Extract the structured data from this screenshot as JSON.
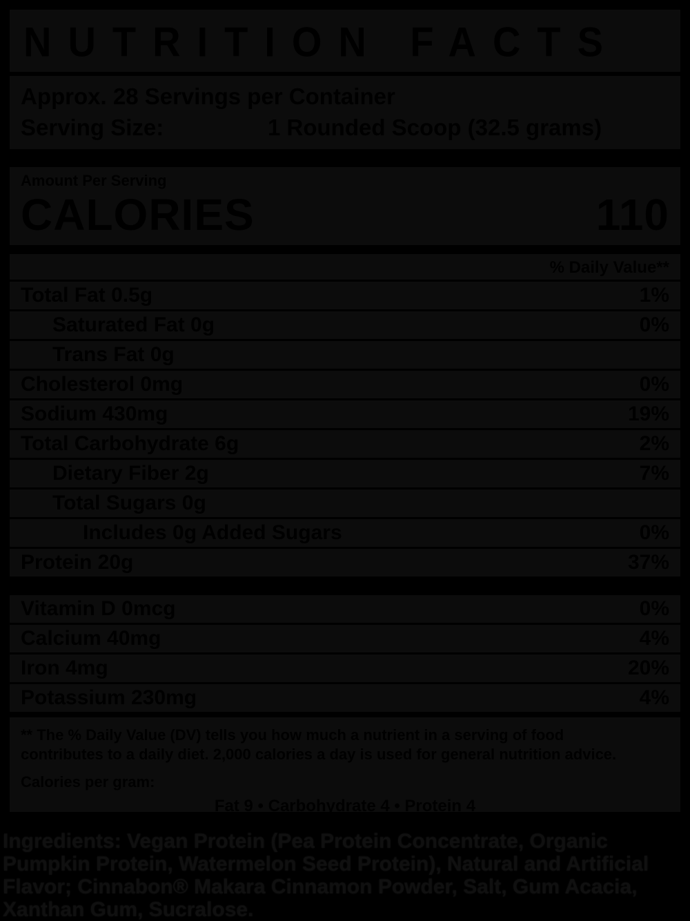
{
  "colors": {
    "page_background": "#000000",
    "label_background": "#0c0c0c",
    "ink": "#000000",
    "ingredients_ink": "#101010"
  },
  "label": {
    "title": "NUTRITION FACTS",
    "servings_per_container": "Approx. 28 Servings per Container",
    "serving_size_label": "Serving Size:",
    "serving_size_value": "1 Rounded Scoop (32.5 grams)",
    "amount_per_serving": "Amount Per Serving",
    "calories_label": "CALORIES",
    "calories_value": "110",
    "daily_value_header": "% Daily Value**",
    "rows": [
      {
        "name": "Total Fat 0.5g",
        "dv": "1%",
        "indent": 0
      },
      {
        "name": "Saturated Fat 0g",
        "dv": "0%",
        "indent": 1
      },
      {
        "name": "Trans Fat 0g",
        "dv": "",
        "indent": 1
      },
      {
        "name": "Cholesterol 0mg",
        "dv": "0%",
        "indent": 0
      },
      {
        "name": "Sodium 430mg",
        "dv": "19%",
        "indent": 0
      },
      {
        "name": "Total Carbohydrate 6g",
        "dv": "2%",
        "indent": 0
      },
      {
        "name": "Dietary Fiber 2g",
        "dv": "7%",
        "indent": 1
      },
      {
        "name": "Total Sugars 0g",
        "dv": "",
        "indent": 1
      },
      {
        "name": "Includes 0g Added Sugars",
        "dv": "0%",
        "indent": 2
      },
      {
        "name": "Protein 20g",
        "dv": "37%",
        "indent": 0
      }
    ],
    "vitamin_rows": [
      {
        "name": "Vitamin D 0mcg",
        "dv": "0%"
      },
      {
        "name": "Calcium 40mg",
        "dv": "4%"
      },
      {
        "name": "Iron 4mg",
        "dv": "20%"
      },
      {
        "name": "Potassium 230mg",
        "dv": "4%"
      }
    ],
    "footnote": "** The % Daily Value (DV) tells you how much a nutrient in a serving of food contributes to a daily diet. 2,000 calories a day is used for general nutrition advice.",
    "calories_per_gram_label": "Calories per gram:",
    "calories_per_gram_values": "Fat 9  •  Carbohydrate 4  •  Protein 4"
  },
  "ingredients_text": "Ingredients: Vegan Protein (Pea Protein Concentrate, Organic Pumpkin Protein, Watermelon Seed Protein), Natural and Artificial Flavor; Cinnabon® Makara Cinnamon Powder, Salt, Gum Acacia, Xanthan Gum, Sucralose."
}
